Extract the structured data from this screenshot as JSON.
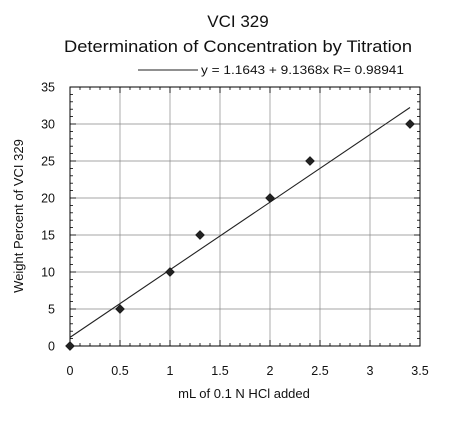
{
  "chart_data": {
    "type": "scatter",
    "title": "VCI 329",
    "subtitle": "Determination of Concentration by Titration",
    "xlabel": "mL of 0.1 N HCl added",
    "ylabel": "Weight Percent of VCI 329",
    "xlim": [
      0,
      3.5
    ],
    "ylim": [
      0,
      35
    ],
    "xticks": [
      "0",
      "0.5",
      "1",
      "1.5",
      "2",
      "2.5",
      "3",
      "3.5"
    ],
    "yticks": [
      "0",
      "5",
      "10",
      "15",
      "20",
      "25",
      "30",
      "35"
    ],
    "grid": true,
    "legend_position": "top",
    "series": [
      {
        "marker": "diamond",
        "points": [
          {
            "x": 0,
            "y": 0
          },
          {
            "x": 0.5,
            "y": 5
          },
          {
            "x": 1,
            "y": 10
          },
          {
            "x": 1.3,
            "y": 15
          },
          {
            "x": 2,
            "y": 20
          },
          {
            "x": 2.4,
            "y": 25
          },
          {
            "x": 3.4,
            "y": 30
          }
        ]
      }
    ],
    "trendline": {
      "intercept": 1.1643,
      "slope": 9.1368,
      "x_range": [
        0,
        3.4
      ],
      "label": "y = 1.1643 + 9.1368x R= 0.98941"
    },
    "colors": {
      "marks": "#222222",
      "grid": "#888888",
      "axis": "#000000"
    }
  }
}
